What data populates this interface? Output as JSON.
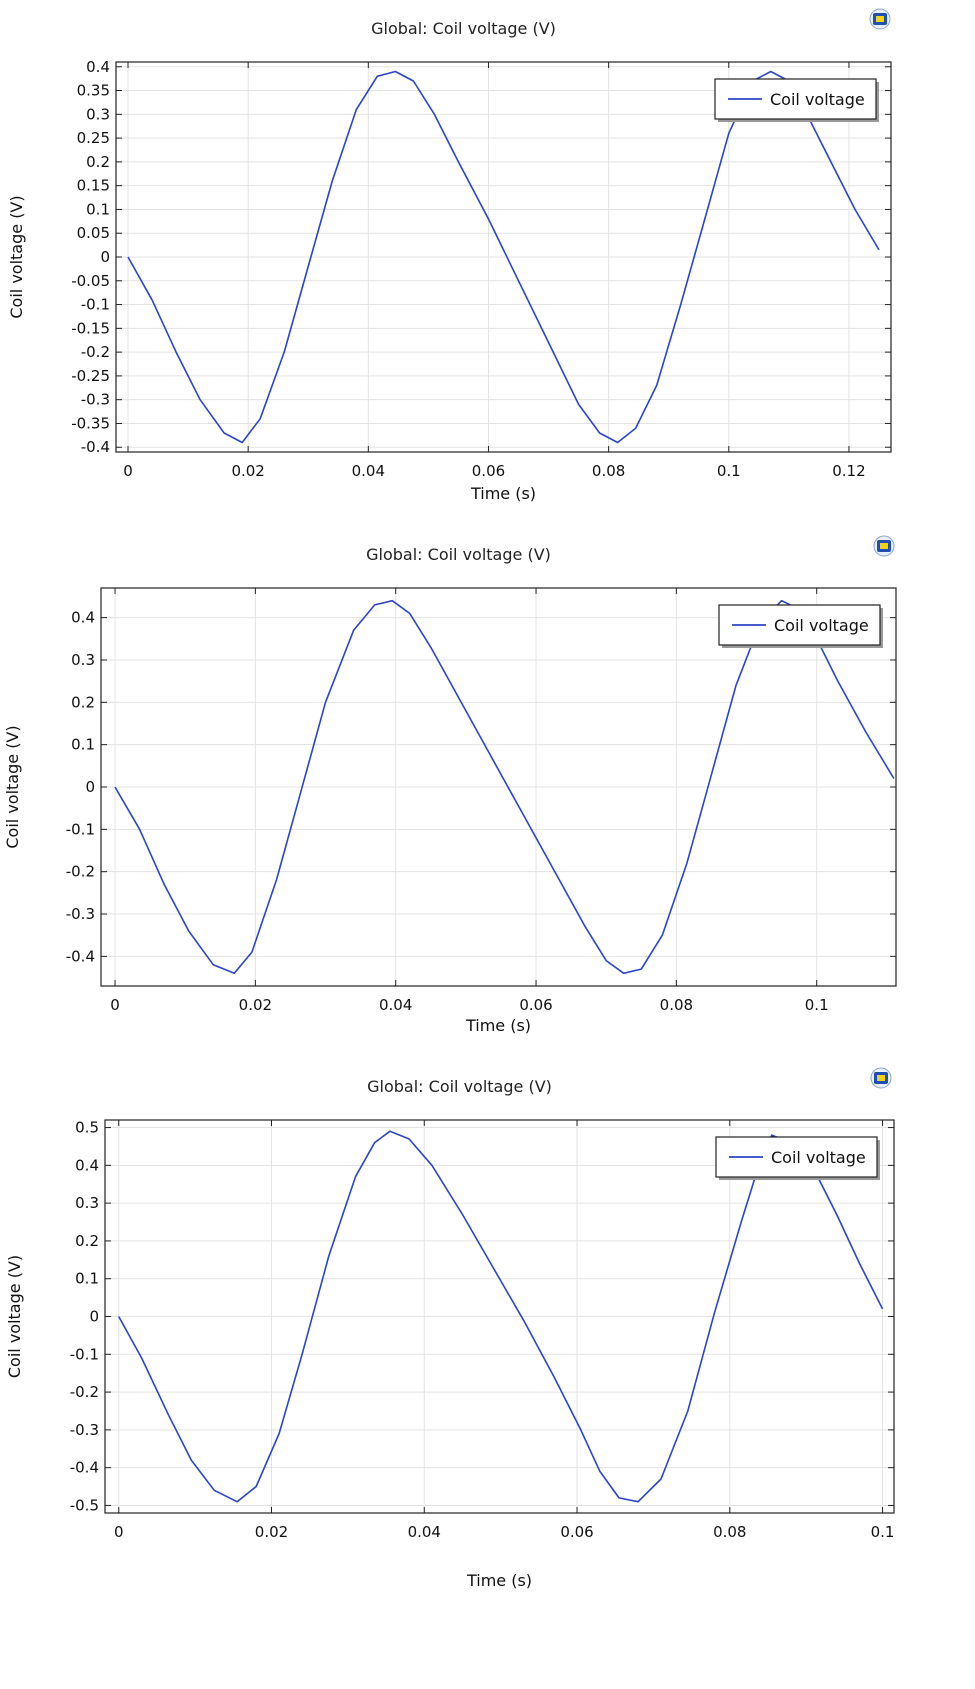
{
  "icons": {
    "corner": "comsol-plot-icon"
  },
  "colors": {
    "series": "#2b45c8",
    "icon_blue": "#1f4fb0",
    "icon_yellow": "#f3d21b"
  },
  "chart_data": [
    {
      "type": "line",
      "title": "Global: Coil voltage (V)",
      "xlabel": "Time (s)",
      "ylabel": "Coil voltage (V)",
      "xlim": [
        -0.002,
        0.127
      ],
      "ylim": [
        -0.41,
        0.41
      ],
      "xticks": [
        0,
        0.02,
        0.04,
        0.06,
        0.08,
        0.1,
        0.12
      ],
      "xtick_labels": [
        "0",
        "0.02",
        "0.04",
        "0.06",
        "0.08",
        "0.1",
        "0.12"
      ],
      "yticks": [
        -0.4,
        -0.35,
        -0.3,
        -0.25,
        -0.2,
        -0.15,
        -0.1,
        -0.05,
        0,
        0.05,
        0.1,
        0.15,
        0.2,
        0.25,
        0.3,
        0.35,
        0.4
      ],
      "ytick_labels": [
        "-0.4",
        "-0.35",
        "-0.3",
        "-0.25",
        "-0.2",
        "-0.15",
        "-0.1",
        "-0.05",
        "0",
        "0.05",
        "0.1",
        "0.15",
        "0.2",
        "0.25",
        "0.3",
        "0.35",
        "0.4"
      ],
      "grid": true,
      "legend": "top-right",
      "series": [
        {
          "name": "Coil voltage",
          "x": [
            0,
            0.004,
            0.008,
            0.012,
            0.016,
            0.019,
            0.022,
            0.026,
            0.03,
            0.034,
            0.038,
            0.0415,
            0.0445,
            0.0475,
            0.051,
            0.055,
            0.06,
            0.065,
            0.07,
            0.075,
            0.0785,
            0.0815,
            0.0845,
            0.088,
            0.092,
            0.096,
            0.1,
            0.104,
            0.107,
            0.11,
            0.113,
            0.117,
            0.121,
            0.125
          ],
          "y": [
            0,
            -0.09,
            -0.2,
            -0.3,
            -0.37,
            -0.39,
            -0.34,
            -0.2,
            -0.02,
            0.16,
            0.31,
            0.38,
            0.39,
            0.37,
            0.3,
            0.2,
            0.08,
            -0.05,
            -0.18,
            -0.31,
            -0.37,
            -0.39,
            -0.36,
            -0.27,
            -0.1,
            0.08,
            0.26,
            0.37,
            0.39,
            0.37,
            0.3,
            0.2,
            0.1,
            0.015
          ]
        }
      ]
    },
    {
      "type": "line",
      "title": "Global: Coil voltage (V)",
      "xlabel": "Time (s)",
      "ylabel": "Coil voltage (V)",
      "xlim": [
        -0.002,
        0.1113
      ],
      "ylim": [
        -0.47,
        0.47
      ],
      "xticks": [
        0,
        0.02,
        0.04,
        0.06,
        0.08,
        0.1
      ],
      "xtick_labels": [
        "0",
        "0.02",
        "0.04",
        "0.06",
        "0.08",
        "0.1"
      ],
      "yticks": [
        -0.4,
        -0.3,
        -0.2,
        -0.1,
        0,
        0.1,
        0.2,
        0.3,
        0.4
      ],
      "ytick_labels": [
        "-0.4",
        "-0.3",
        "-0.2",
        "-0.1",
        "0",
        "0.1",
        "0.2",
        "0.3",
        "0.4"
      ],
      "grid": true,
      "legend": "top-right",
      "series": [
        {
          "name": "Coil voltage",
          "x": [
            0,
            0.0035,
            0.007,
            0.0105,
            0.014,
            0.017,
            0.0195,
            0.023,
            0.0265,
            0.03,
            0.034,
            0.037,
            0.0395,
            0.042,
            0.045,
            0.049,
            0.053,
            0.058,
            0.063,
            0.067,
            0.07,
            0.0725,
            0.075,
            0.078,
            0.0815,
            0.085,
            0.0885,
            0.092,
            0.095,
            0.0975,
            0.1,
            0.103,
            0.107,
            0.111
          ],
          "y": [
            0,
            -0.1,
            -0.23,
            -0.34,
            -0.42,
            -0.44,
            -0.39,
            -0.22,
            -0.01,
            0.2,
            0.37,
            0.43,
            0.44,
            0.41,
            0.33,
            0.21,
            0.09,
            -0.06,
            -0.21,
            -0.33,
            -0.41,
            -0.44,
            -0.43,
            -0.35,
            -0.18,
            0.03,
            0.24,
            0.39,
            0.44,
            0.42,
            0.35,
            0.25,
            0.13,
            0.02
          ]
        }
      ]
    },
    {
      "type": "line",
      "title": "Global: Coil voltage (V)",
      "xlabel": "Time (s)",
      "ylabel": "Coil voltage (V)",
      "xlim": [
        -0.0018,
        0.1015
      ],
      "ylim": [
        -0.52,
        0.52
      ],
      "xticks": [
        0,
        0.02,
        0.04,
        0.06,
        0.08,
        0.1
      ],
      "xtick_labels": [
        "0",
        "0.02",
        "0.04",
        "0.06",
        "0.08",
        "0.1"
      ],
      "yticks": [
        -0.5,
        -0.4,
        -0.3,
        -0.2,
        -0.1,
        0,
        0.1,
        0.2,
        0.3,
        0.4,
        0.5
      ],
      "ytick_labels": [
        "-0.5",
        "-0.4",
        "-0.3",
        "-0.2",
        "-0.1",
        "0",
        "0.1",
        "0.2",
        "0.3",
        "0.4",
        "0.5"
      ],
      "grid": true,
      "legend": "top-right",
      "series": [
        {
          "name": "Coil voltage",
          "x": [
            0,
            0.003,
            0.0065,
            0.0095,
            0.0125,
            0.0155,
            0.018,
            0.021,
            0.024,
            0.0275,
            0.031,
            0.0335,
            0.0355,
            0.038,
            0.041,
            0.045,
            0.049,
            0.053,
            0.057,
            0.0605,
            0.063,
            0.0655,
            0.068,
            0.071,
            0.0745,
            0.078,
            0.0815,
            0.0835,
            0.0855,
            0.088,
            0.091,
            0.094,
            0.097,
            0.1
          ],
          "y": [
            0,
            -0.11,
            -0.26,
            -0.38,
            -0.46,
            -0.49,
            -0.45,
            -0.31,
            -0.1,
            0.16,
            0.37,
            0.46,
            0.49,
            0.47,
            0.4,
            0.27,
            0.13,
            -0.01,
            -0.16,
            -0.3,
            -0.41,
            -0.48,
            -0.49,
            -0.43,
            -0.25,
            0.01,
            0.25,
            0.38,
            0.48,
            0.46,
            0.39,
            0.27,
            0.14,
            0.02
          ]
        }
      ]
    }
  ]
}
